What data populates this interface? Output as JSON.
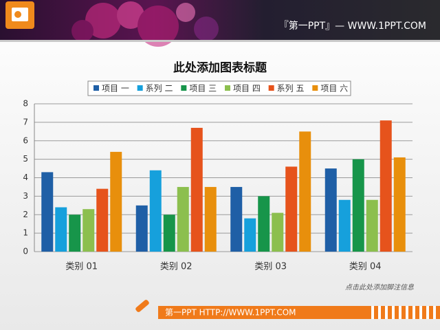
{
  "header": {
    "brand": "『第一PPT』— WWW.1PPT.COM"
  },
  "footnote": "点击此处添加脚注信息",
  "footer": {
    "text": "第一PPT HTTP://WWW.1PPT.COM"
  },
  "chart_data": {
    "type": "bar",
    "title": "此处添加图表标题",
    "categories": [
      "类别 01",
      "类别 02",
      "类别 03",
      "类别 04"
    ],
    "series": [
      {
        "name": "项目 一",
        "color": "#1f5fa6",
        "values": [
          4.3,
          2.5,
          3.5,
          4.5
        ]
      },
      {
        "name": "系列 二",
        "color": "#16a0dc",
        "values": [
          2.4,
          4.4,
          1.8,
          2.8
        ]
      },
      {
        "name": "项目 三",
        "color": "#17954a",
        "values": [
          2.0,
          2.0,
          3.0,
          5.0
        ]
      },
      {
        "name": "项目 四",
        "color": "#8cbf4e",
        "values": [
          2.3,
          3.5,
          2.1,
          2.8
        ]
      },
      {
        "name": "系列 五",
        "color": "#e6531c",
        "values": [
          3.4,
          6.7,
          4.6,
          7.1
        ]
      },
      {
        "name": "项目 六",
        "color": "#e88f0c",
        "values": [
          5.4,
          3.5,
          6.5,
          5.1
        ]
      }
    ],
    "ylim": [
      0,
      8
    ],
    "yticks": [
      0,
      1,
      2,
      3,
      4,
      5,
      6,
      7,
      8
    ],
    "grid": true,
    "legend": "top"
  }
}
